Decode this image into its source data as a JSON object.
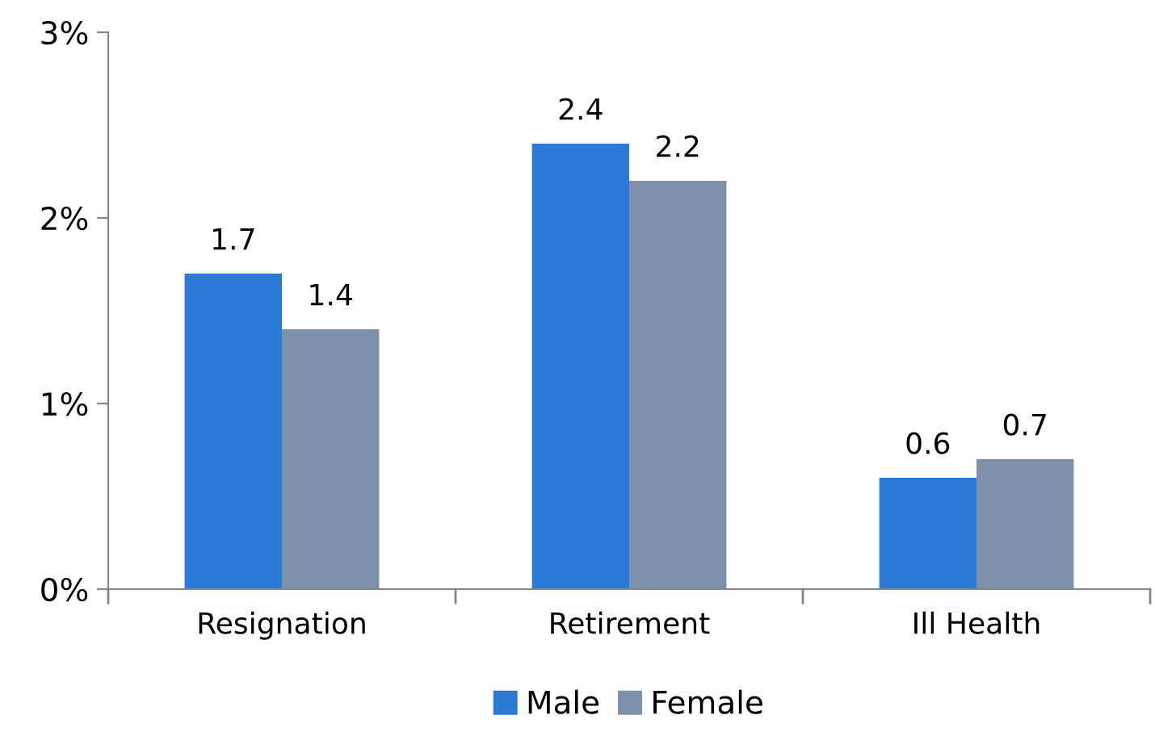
{
  "chart_data": {
    "type": "bar",
    "categories": [
      "Resignation",
      "Retirement",
      "Ill Health"
    ],
    "series": [
      {
        "name": "Male",
        "color": "#2b7bd6",
        "values": [
          1.7,
          2.4,
          0.6
        ]
      },
      {
        "name": "Female",
        "color": "#8190aa",
        "values": [
          1.4,
          2.2,
          0.7
        ]
      }
    ],
    "ylim": [
      0,
      3
    ],
    "yticks": [
      {
        "value": 0,
        "label": "0%"
      },
      {
        "value": 1,
        "label": "1%"
      },
      {
        "value": 2,
        "label": "2%"
      },
      {
        "value": 3,
        "label": "3%"
      }
    ],
    "data_labels": true,
    "grid": false,
    "legend": "bottom"
  }
}
